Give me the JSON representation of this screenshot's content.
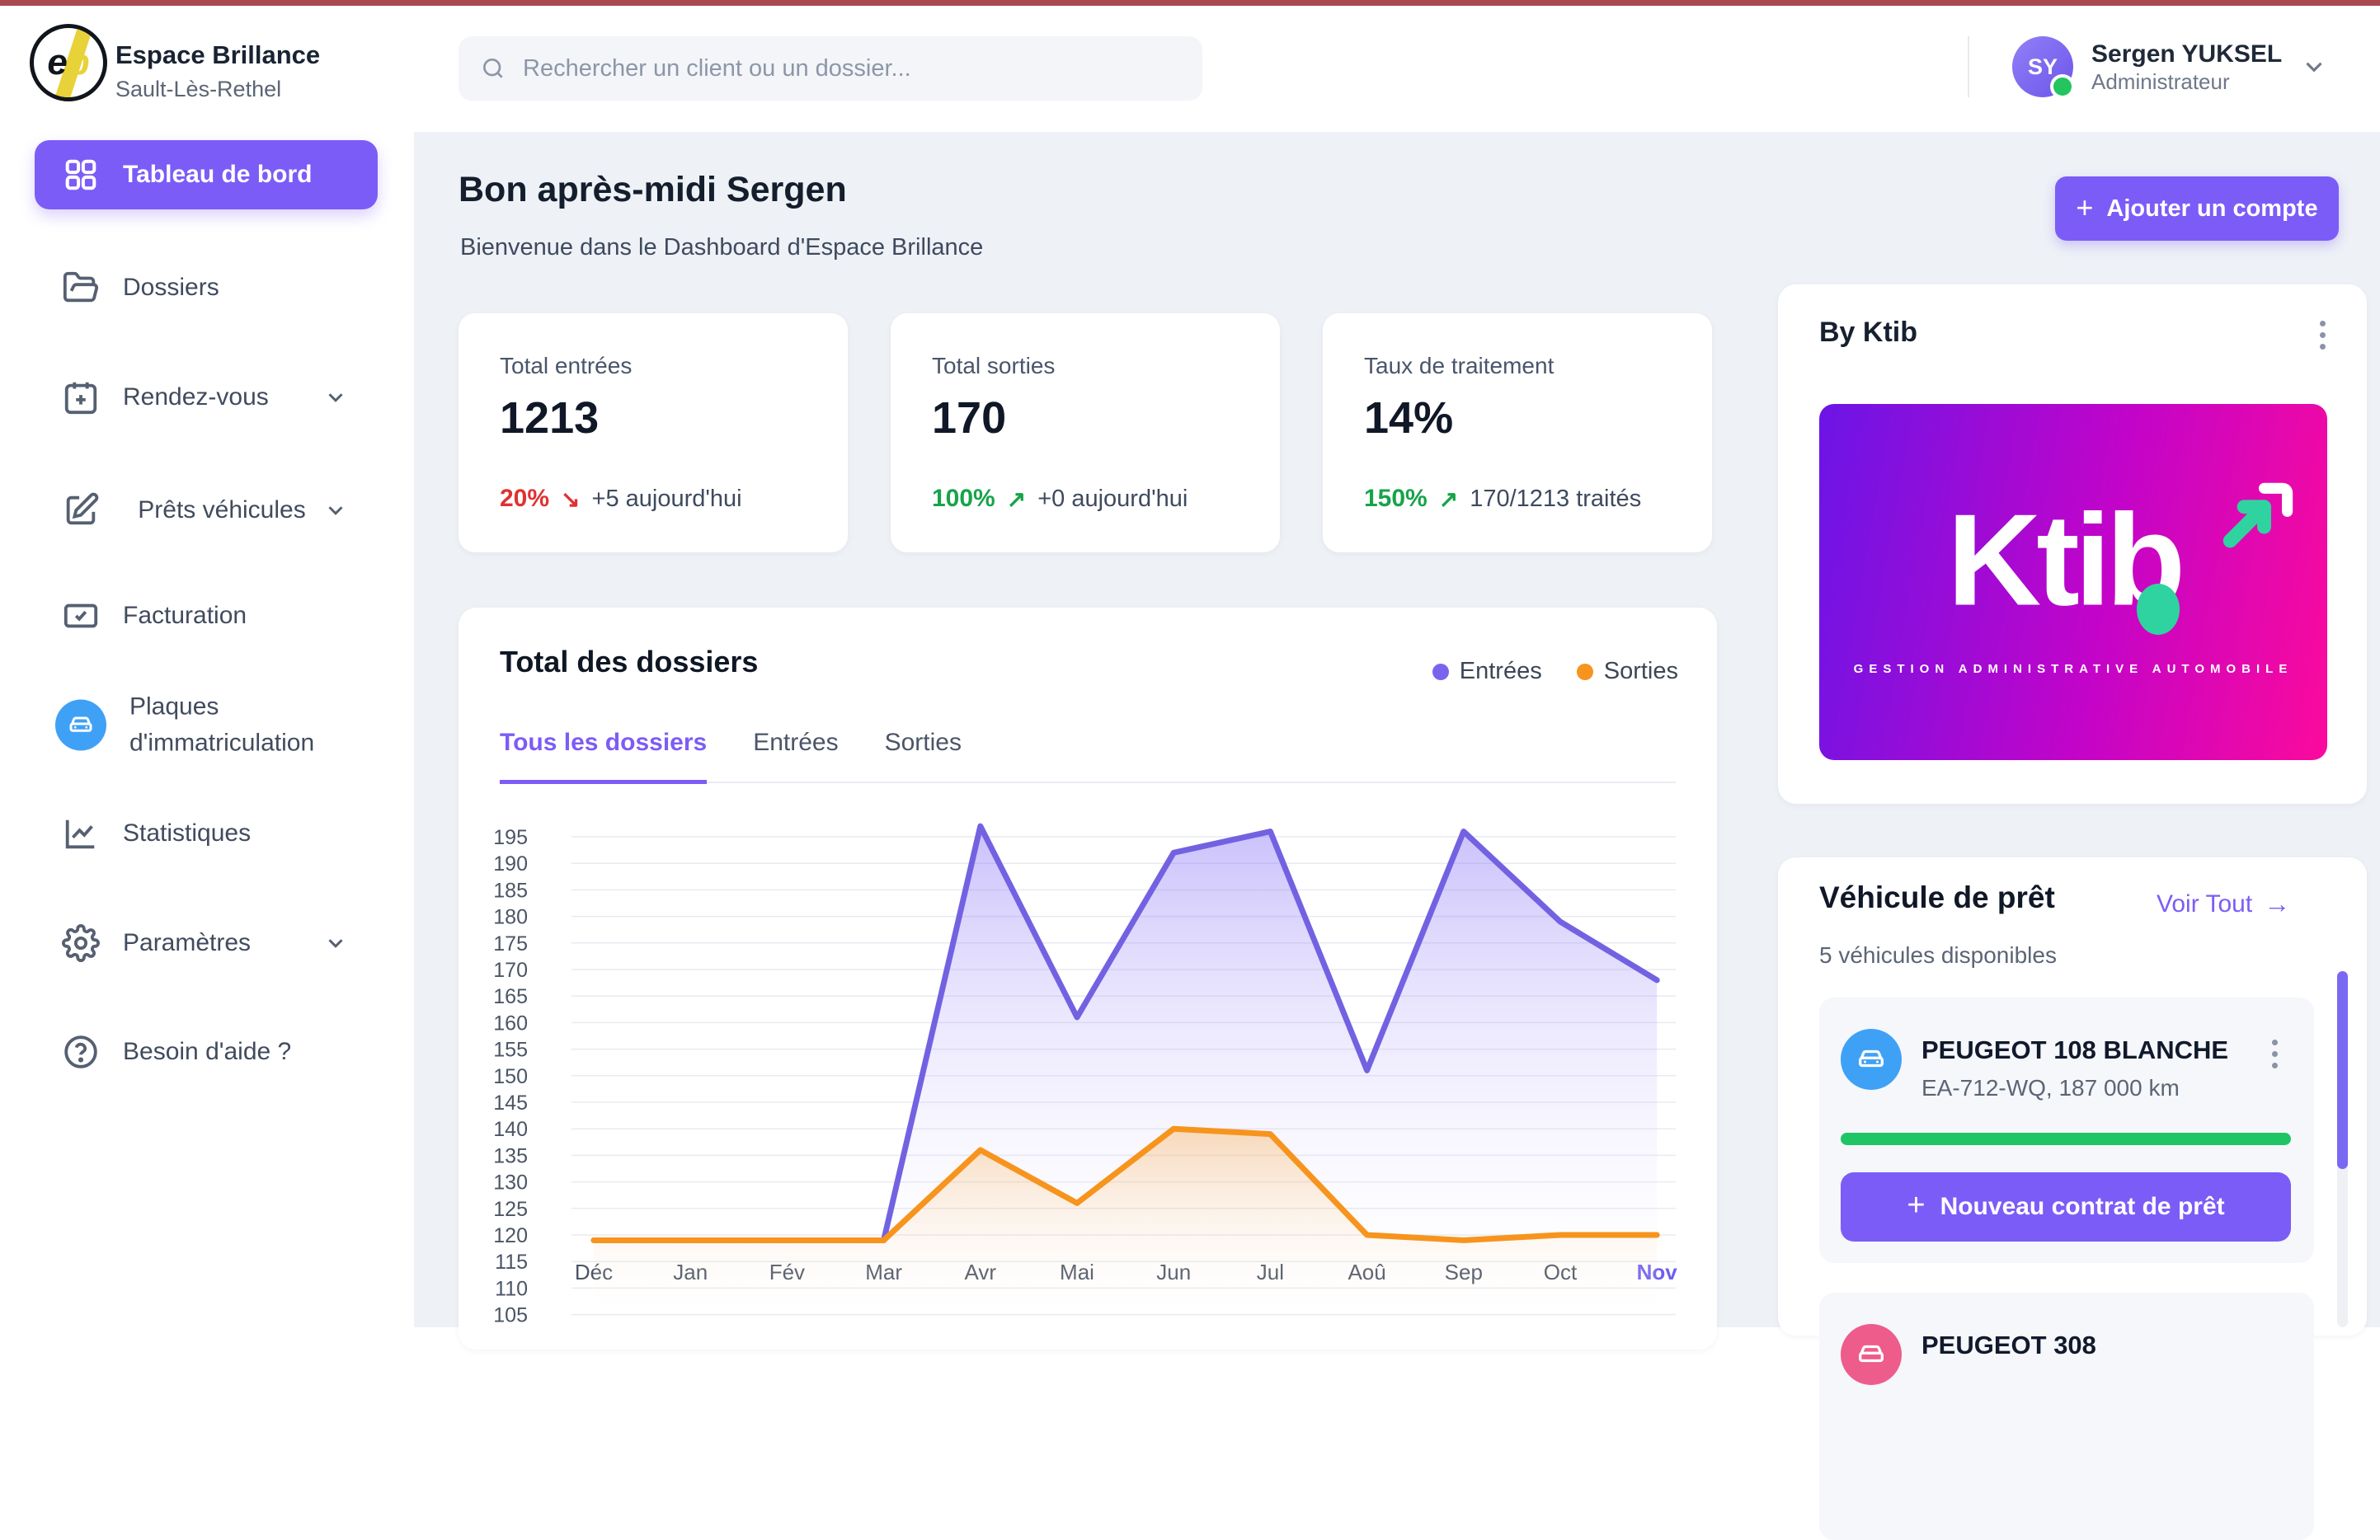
{
  "page": {
    "top_strip_color": "#a9484f"
  },
  "sidebar": {
    "brand": {
      "name": "Espace Brillance",
      "location": "Sault-Lès-Rethel",
      "logo_e": "e",
      "logo_b": "b"
    },
    "items": [
      {
        "label": "Tableau de bord"
      },
      {
        "label": "Dossiers"
      },
      {
        "label": "Rendez-vous"
      },
      {
        "label": "Prêts véhicules"
      },
      {
        "label": "Facturation"
      },
      {
        "label": "Plaques d'immatriculation"
      },
      {
        "label": "Statistiques"
      },
      {
        "label": "Paramètres"
      },
      {
        "label": "Besoin d'aide ?"
      }
    ]
  },
  "header": {
    "search_placeholder": "Rechercher un client ou un dossier...",
    "user": {
      "initials": "SY",
      "name": "Sergen YUKSEL",
      "role": "Administrateur"
    }
  },
  "main": {
    "greeting": "Bon après-midi Sergen",
    "welcome": "Bienvenue dans le Dashboard d'Espace Brillance",
    "add_account": "Ajouter un compte",
    "stats": [
      {
        "label": "Total entrées",
        "value": "1213",
        "percent": "20%",
        "arrow": "↘",
        "color": "#e03131",
        "note": "+5 aujourd'hui"
      },
      {
        "label": "Total sorties",
        "value": "170",
        "percent": "100%",
        "arrow": "↗",
        "color": "#17a34a",
        "note": "+0 aujourd'hui"
      },
      {
        "label": "Taux de traitement",
        "value": "14%",
        "percent": "150%",
        "arrow": "↗",
        "color": "#17a34a",
        "note": "170/1213 traités"
      }
    ],
    "chart_card": {
      "title": "Total des dossiers",
      "legend": [
        {
          "label": "Entrées",
          "color": "#7c63ee"
        },
        {
          "label": "Sorties",
          "color": "#f7941d"
        }
      ],
      "tabs": [
        {
          "label": "Tous les dossiers"
        },
        {
          "label": "Entrées"
        },
        {
          "label": "Sorties"
        }
      ]
    }
  },
  "chart_data": {
    "type": "line",
    "title": "Total des dossiers",
    "categories": [
      "Déc",
      "Jan",
      "Fév",
      "Mar",
      "Avr",
      "Mai",
      "Jun",
      "Jul",
      "Aoû",
      "Sep",
      "Oct",
      "Nov"
    ],
    "series": [
      {
        "name": "Entrées",
        "color": "#7262e2",
        "fill": "rgba(124,99,245,0.40)",
        "values": [
          119,
          119,
          119,
          119,
          197,
          161,
          192,
          196,
          151,
          196,
          179,
          168
        ]
      },
      {
        "name": "Sorties",
        "color": "#f7941d",
        "fill": "rgba(247,148,29,0.30)",
        "values": [
          119,
          119,
          119,
          119,
          136,
          126,
          140,
          139,
          120,
          119,
          120,
          120
        ]
      }
    ],
    "ylim": [
      105,
      195
    ],
    "ytick_step": 5,
    "grid": true,
    "legend_position": "top-right",
    "highlight_last_category": true
  },
  "right_panel": {
    "byktib": {
      "title": "By Ktib",
      "logo_word": "Ktib",
      "logo_tagline": "GESTION ADMINISTRATIVE AUTOMOBILE",
      "gradient_start": "#6b15e6",
      "gradient_end": "#fb0a9c"
    },
    "vehicles": {
      "title": "Véhicule de prêt",
      "see_all": "Voir Tout",
      "see_all_arrow": "→",
      "subtitle": "5 véhicules disponibles",
      "cards": [
        {
          "name": "PEUGEOT 108 BLANCHE",
          "details": "EA-712-WQ, 187 000 km",
          "icon_color": "#3fa1f6",
          "progress_color": "#1fc565",
          "button": "Nouveau contrat de prêt"
        },
        {
          "name": "PEUGEOT 308",
          "icon_color": "#ee5c8c"
        }
      ]
    }
  }
}
